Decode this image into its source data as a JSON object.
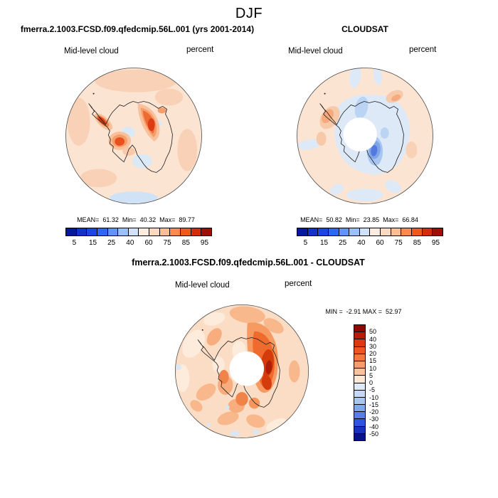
{
  "title": "DJF",
  "panels": {
    "model": {
      "case_title": "fmerra.2.1003.FCSD.f09.qfedcmip.56L.001 (yrs 2001-2014)",
      "field_label": "Mid-level cloud",
      "units": "percent",
      "stats_line": "MEAN=  61.32  Min=  40.32  Max=  89.77",
      "colorbar": {
        "labels": [
          "5",
          "15",
          "25",
          "40",
          "60",
          "75",
          "85",
          "95"
        ],
        "colors": [
          "#06199c",
          "#1132cc",
          "#1b45e8",
          "#2c67f5",
          "#6094f8",
          "#98c0fa",
          "#cfe1fb",
          "#fcecdf",
          "#fbd9c0",
          "#fbbd92",
          "#f98a52",
          "#f25722",
          "#d62a0e",
          "#a00f06"
        ]
      }
    },
    "obs": {
      "case_title": "CLOUDSAT",
      "field_label": "Mid-level cloud",
      "units": "percent",
      "stats_line": "MEAN=  50.82  Min=  23.85  Max=  66.84",
      "colorbar": {
        "labels": [
          "5",
          "15",
          "25",
          "40",
          "60",
          "75",
          "85",
          "95"
        ],
        "colors": [
          "#06199c",
          "#1132cc",
          "#1b45e8",
          "#2c67f5",
          "#6094f8",
          "#98c0fa",
          "#cfe1fb",
          "#fcecdf",
          "#fbd9c0",
          "#fbbd92",
          "#f98a52",
          "#f25722",
          "#d62a0e",
          "#a00f06"
        ]
      }
    },
    "diff": {
      "case_title": "fmerra.2.1003.FCSD.f09.qfedcmip.56L.001 - CLOUDSAT",
      "field_label": "Mid-level cloud",
      "units": "percent",
      "stats_line": "MIN =  -2.91 MAX =  52.97",
      "colorbar": {
        "labels": [
          "50",
          "40",
          "30",
          "20",
          "15",
          "10",
          "5",
          "0",
          "-5",
          "-10",
          "-15",
          "-20",
          "-30",
          "-40",
          "-50"
        ],
        "colors": [
          "#8c0a04",
          "#bb1c08",
          "#dc3910",
          "#f05423",
          "#f4773f",
          "#f79d6c",
          "#fbc39c",
          "#fde8d5",
          "#dfeaf8",
          "#c6d9f4",
          "#a9c6f0",
          "#7fa8ec",
          "#577fe8",
          "#2f55e0",
          "#1831bc",
          "#071289"
        ]
      }
    }
  },
  "chart_data": [
    {
      "type": "heatmap",
      "subtype": "south-polar-stereographic contour map",
      "title": "fmerra.2.1003.FCSD.f09.qfedcmip.56L.001 (yrs 2001-2014)",
      "season": "DJF",
      "variable": "Mid-level cloud",
      "units": "percent",
      "stats": {
        "mean": 61.32,
        "min": 40.32,
        "max": 89.77
      },
      "contour_levels": [
        5,
        15,
        25,
        40,
        60,
        75,
        85,
        95
      ],
      "legend_position": "bottom",
      "palette_direction": "blue-low to red-high"
    },
    {
      "type": "heatmap",
      "subtype": "south-polar-stereographic contour map",
      "title": "CLOUDSAT",
      "season": "DJF",
      "variable": "Mid-level cloud",
      "units": "percent",
      "stats": {
        "mean": 50.82,
        "min": 23.85,
        "max": 66.84
      },
      "contour_levels": [
        5,
        15,
        25,
        40,
        60,
        75,
        85,
        95
      ],
      "legend_position": "bottom",
      "notes": "white circular data gap at pole"
    },
    {
      "type": "heatmap",
      "subtype": "south-polar-stereographic difference map",
      "title": "fmerra.2.1003.FCSD.f09.qfedcmip.56L.001 - CLOUDSAT",
      "season": "DJF",
      "variable": "Mid-level cloud",
      "units": "percent",
      "stats": {
        "min": -2.91,
        "max": 52.97
      },
      "contour_levels": [
        50,
        40,
        30,
        20,
        15,
        10,
        5,
        0,
        -5,
        -10,
        -15,
        -20,
        -30,
        -40,
        -50
      ],
      "legend_position": "right",
      "notes": "white circular data gap at pole; mostly positive (red) differences"
    }
  ]
}
